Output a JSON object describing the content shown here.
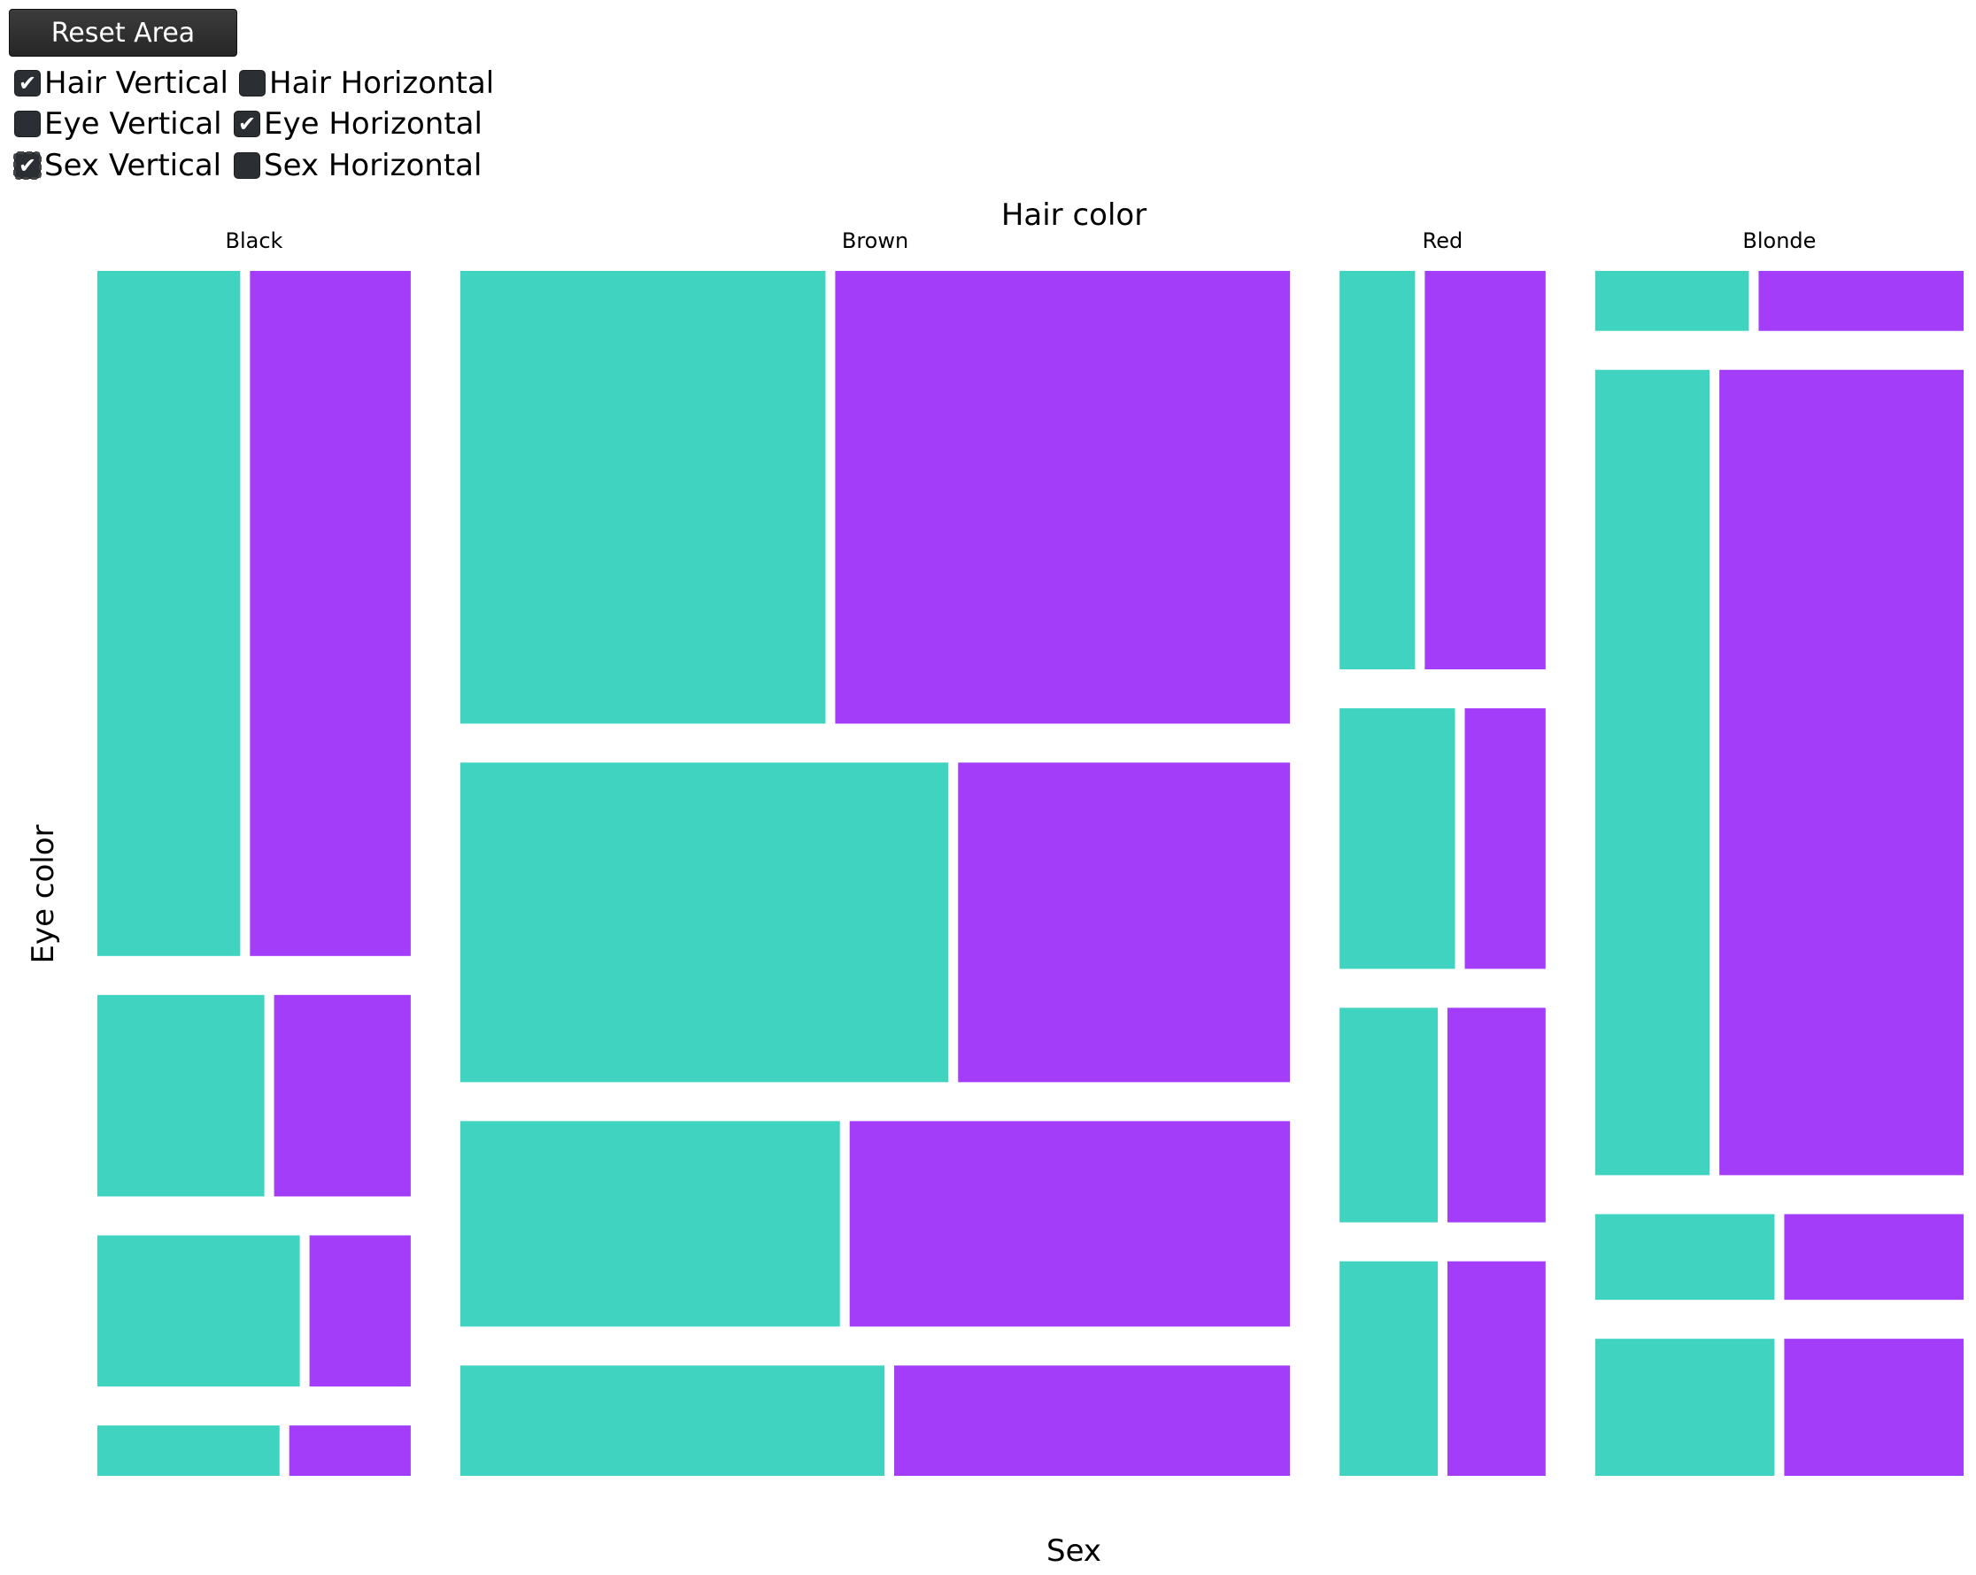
{
  "controls": {
    "reset_label": "Reset Area",
    "checkboxes": [
      {
        "label": "Hair Vertical",
        "checked": true
      },
      {
        "label": "Hair Horizontal",
        "checked": false
      },
      {
        "label": "Eye Vertical",
        "checked": false
      },
      {
        "label": "Eye Horizontal",
        "checked": true
      },
      {
        "label": "Sex Vertical",
        "checked": true
      },
      {
        "label": "Sex Horizontal",
        "checked": false
      }
    ]
  },
  "chart_data": {
    "type": "mosaic",
    "title": "Hair color",
    "xlabel": "Sex",
    "ylabel": "Eye color",
    "colors": {
      "first_sex": "#40d4c0",
      "second_sex": "#a33dfa"
    },
    "hair_colors": [
      {
        "label": "Black",
        "count": 108,
        "eye_cells": [
          {
            "count": 68,
            "sex": [
              32,
              36
            ]
          },
          {
            "count": 20,
            "sex": [
              11,
              9
            ]
          },
          {
            "count": 15,
            "sex": [
              10,
              5
            ]
          },
          {
            "count": 5,
            "sex": [
              3,
              2
            ]
          }
        ]
      },
      {
        "label": "Brown",
        "count": 286,
        "eye_cells": [
          {
            "count": 119,
            "sex": [
              53,
              66
            ]
          },
          {
            "count": 84,
            "sex": [
              50,
              34
            ]
          },
          {
            "count": 54,
            "sex": [
              25,
              29
            ]
          },
          {
            "count": 29,
            "sex": [
              15,
              14
            ]
          }
        ]
      },
      {
        "label": "Red",
        "count": 71,
        "eye_cells": [
          {
            "count": 26,
            "sex": [
              10,
              16
            ]
          },
          {
            "count": 17,
            "sex": [
              10,
              7
            ]
          },
          {
            "count": 14,
            "sex": [
              7,
              7
            ]
          },
          {
            "count": 14,
            "sex": [
              7,
              7
            ]
          }
        ]
      },
      {
        "label": "Blonde",
        "count": 127,
        "eye_cells": [
          {
            "count": 7,
            "sex": [
              3,
              4
            ]
          },
          {
            "count": 94,
            "sex": [
              30,
              64
            ]
          },
          {
            "count": 10,
            "sex": [
              5,
              5
            ]
          },
          {
            "count": 16,
            "sex": [
              8,
              8
            ]
          }
        ]
      }
    ]
  }
}
